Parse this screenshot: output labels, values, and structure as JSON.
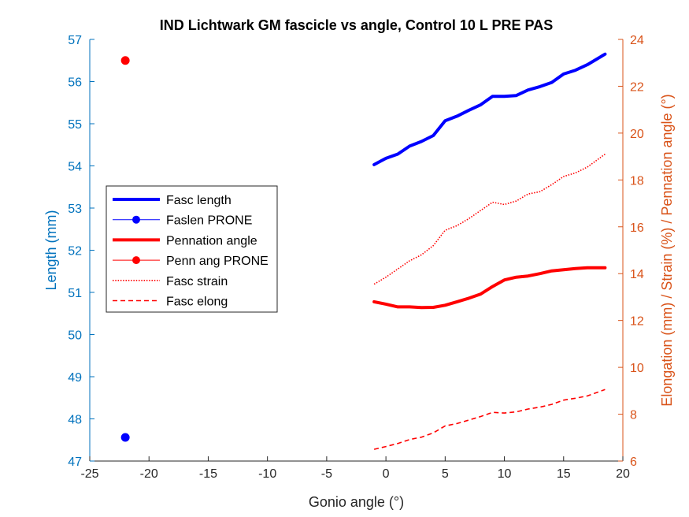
{
  "chart_data": {
    "type": "line",
    "title": "IND Lichtwark GM fascicle vs angle, Control 10 L PRE PAS",
    "xlabel": "Gonio angle (°)",
    "ylabel_left": "Length (mm)",
    "ylabel_right": "Elongation (mm) / Strain (%) / Pennation angle (°)",
    "xlim": [
      -25,
      20
    ],
    "ylim_left": [
      47,
      57
    ],
    "ylim_right": [
      6,
      24
    ],
    "xticks": [
      "-25",
      "-20",
      "-15",
      "-10",
      "-5",
      "0",
      "5",
      "10",
      "15",
      "20"
    ],
    "yticks_left": [
      "47",
      "48",
      "49",
      "50",
      "51",
      "52",
      "53",
      "54",
      "55",
      "56",
      "57"
    ],
    "yticks_right": [
      "6",
      "8",
      "10",
      "12",
      "14",
      "16",
      "18",
      "20",
      "22",
      "24"
    ],
    "colors": {
      "left_axis": "#0072BD",
      "right_axis": "#D95319",
      "blue": "#0000FF",
      "red": "#FF0000"
    },
    "legend": {
      "placement": "center-left",
      "entries": [
        {
          "label": "Fasc length",
          "style": "thick-line",
          "color": "#0000FF"
        },
        {
          "label": "Faslen PRONE",
          "style": "line-marker",
          "color": "#0000FF"
        },
        {
          "label": "Pennation angle",
          "style": "thick-line",
          "color": "#FF0000"
        },
        {
          "label": "Penn ang PRONE",
          "style": "line-marker",
          "color": "#FF0000"
        },
        {
          "label": "Fasc strain",
          "style": "dotted",
          "color": "#FF0000"
        },
        {
          "label": "Fasc elong",
          "style": "dashed",
          "color": "#FF0000"
        }
      ]
    },
    "series": [
      {
        "name": "Fasc length",
        "axis": "left",
        "style": "thick-line",
        "color": "#0000FF",
        "x": [
          -1,
          0,
          1,
          2,
          3,
          4,
          5,
          6,
          7,
          8,
          9,
          10,
          11,
          12,
          13,
          14,
          15,
          16,
          17,
          18.5
        ],
        "y": [
          54.03,
          54.18,
          54.28,
          54.47,
          54.58,
          54.72,
          55.07,
          55.18,
          55.32,
          55.45,
          55.65,
          55.65,
          55.67,
          55.8,
          55.88,
          55.98,
          56.18,
          56.27,
          56.4,
          56.65
        ]
      },
      {
        "name": "Faslen PRONE",
        "axis": "left",
        "style": "marker",
        "color": "#0000FF",
        "x": [
          -22
        ],
        "y": [
          47.56
        ]
      },
      {
        "name": "Pennation angle",
        "axis": "right",
        "style": "thick-line",
        "color": "#FF0000",
        "x": [
          -1,
          0,
          1,
          2,
          3,
          4,
          5,
          6,
          7,
          8,
          9,
          10,
          11,
          12,
          13,
          14,
          15,
          16,
          17,
          18.5
        ],
        "y": [
          12.8,
          12.7,
          12.58,
          12.58,
          12.55,
          12.56,
          12.65,
          12.8,
          12.95,
          13.13,
          13.45,
          13.73,
          13.85,
          13.9,
          14.0,
          14.12,
          14.17,
          14.22,
          14.25,
          14.25
        ]
      },
      {
        "name": "Penn ang PRONE",
        "axis": "right",
        "style": "marker",
        "color": "#FF0000",
        "x": [
          -22
        ],
        "y": [
          23.1
        ]
      },
      {
        "name": "Fasc strain",
        "axis": "right",
        "style": "dotted",
        "color": "#FF0000",
        "x": [
          -1,
          0,
          1,
          2,
          3,
          4,
          5,
          6,
          7,
          8,
          9,
          10,
          11,
          12,
          13,
          14,
          15,
          16,
          17,
          18.5
        ],
        "y": [
          13.55,
          13.85,
          14.2,
          14.55,
          14.8,
          15.2,
          15.85,
          16.05,
          16.35,
          16.7,
          17.05,
          16.95,
          17.1,
          17.4,
          17.5,
          17.8,
          18.15,
          18.3,
          18.55,
          19.1
        ]
      },
      {
        "name": "Fasc elong",
        "axis": "right",
        "style": "dashed",
        "color": "#FF0000",
        "x": [
          -1,
          0,
          1,
          2,
          3,
          4,
          5,
          6,
          7,
          8,
          9,
          10,
          11,
          12,
          13,
          14,
          15,
          16,
          17,
          18.5
        ],
        "y": [
          6.5,
          6.62,
          6.75,
          6.92,
          7.02,
          7.2,
          7.5,
          7.6,
          7.75,
          7.9,
          8.08,
          8.05,
          8.1,
          8.22,
          8.3,
          8.42,
          8.6,
          8.68,
          8.78,
          9.05
        ]
      }
    ]
  }
}
